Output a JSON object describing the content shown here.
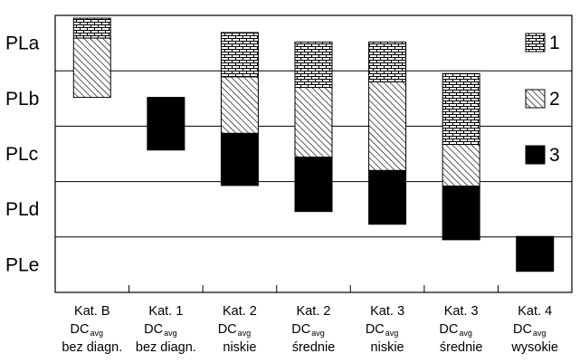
{
  "chart_data": {
    "type": "bar",
    "subtype": "floating-stacked",
    "y_levels": [
      "PLa",
      "PLb",
      "PLc",
      "PLd",
      "PLe"
    ],
    "legend": {
      "placement": "right",
      "items": [
        {
          "key": "1",
          "pattern": "brick"
        },
        {
          "key": "2",
          "pattern": "hatch"
        },
        {
          "key": "3",
          "pattern": "solid"
        }
      ]
    },
    "categories": [
      {
        "line1": "Kat. B",
        "dc": "DC",
        "sub": "avg",
        "line3": "bez diagn."
      },
      {
        "line1": "Kat. 1",
        "dc": "DC",
        "sub": "avg",
        "line3": "bez diagn."
      },
      {
        "line1": "Kat. 2",
        "dc": "DC",
        "sub": "avg",
        "line3": "niskie"
      },
      {
        "line1": "Kat. 2",
        "dc": "DC",
        "sub": "avg",
        "line3": "średnie"
      },
      {
        "line1": "Kat. 3",
        "dc": "DC",
        "sub": "avg",
        "line3": "niskie"
      },
      {
        "line1": "Kat. 3",
        "dc": "DC",
        "sub": "avg",
        "line3": "średnie"
      },
      {
        "line1": "Kat. 4",
        "dc": "DC",
        "sub": "avg",
        "line3": "wysokie"
      }
    ],
    "comment": "y values in PL-level units: 0 = top of chart, 0.5 = PLa, 1.5 = PLb, 2.5 = PLc, 3.5 = PLd, 4.5 = PLe, 5 = bottom",
    "bars": [
      {
        "category_index": 0,
        "segments": [
          {
            "series": "1",
            "from": 0.05,
            "to": 0.41
          },
          {
            "series": "2",
            "from": 0.41,
            "to": 1.48
          }
        ]
      },
      {
        "category_index": 1,
        "segments": [
          {
            "series": "3",
            "from": 1.48,
            "to": 2.43
          }
        ]
      },
      {
        "category_index": 2,
        "segments": [
          {
            "series": "1",
            "from": 0.31,
            "to": 1.11
          },
          {
            "series": "2",
            "from": 1.11,
            "to": 2.13
          },
          {
            "series": "3",
            "from": 2.13,
            "to": 3.07
          }
        ]
      },
      {
        "category_index": 3,
        "segments": [
          {
            "series": "1",
            "from": 0.48,
            "to": 1.3
          },
          {
            "series": "2",
            "from": 1.3,
            "to": 2.56
          },
          {
            "series": "3",
            "from": 2.56,
            "to": 3.54
          }
        ]
      },
      {
        "category_index": 4,
        "segments": [
          {
            "series": "1",
            "from": 0.48,
            "to": 1.2
          },
          {
            "series": "2",
            "from": 1.2,
            "to": 2.8
          },
          {
            "series": "3",
            "from": 2.8,
            "to": 3.77
          }
        ]
      },
      {
        "category_index": 5,
        "segments": [
          {
            "series": "1",
            "from": 1.05,
            "to": 2.33
          },
          {
            "series": "2",
            "from": 2.33,
            "to": 3.08
          },
          {
            "series": "3",
            "from": 3.08,
            "to": 4.05
          }
        ]
      },
      {
        "category_index": 6,
        "segments": [
          {
            "series": "3",
            "from": 3.99,
            "to": 4.62
          }
        ]
      }
    ]
  }
}
